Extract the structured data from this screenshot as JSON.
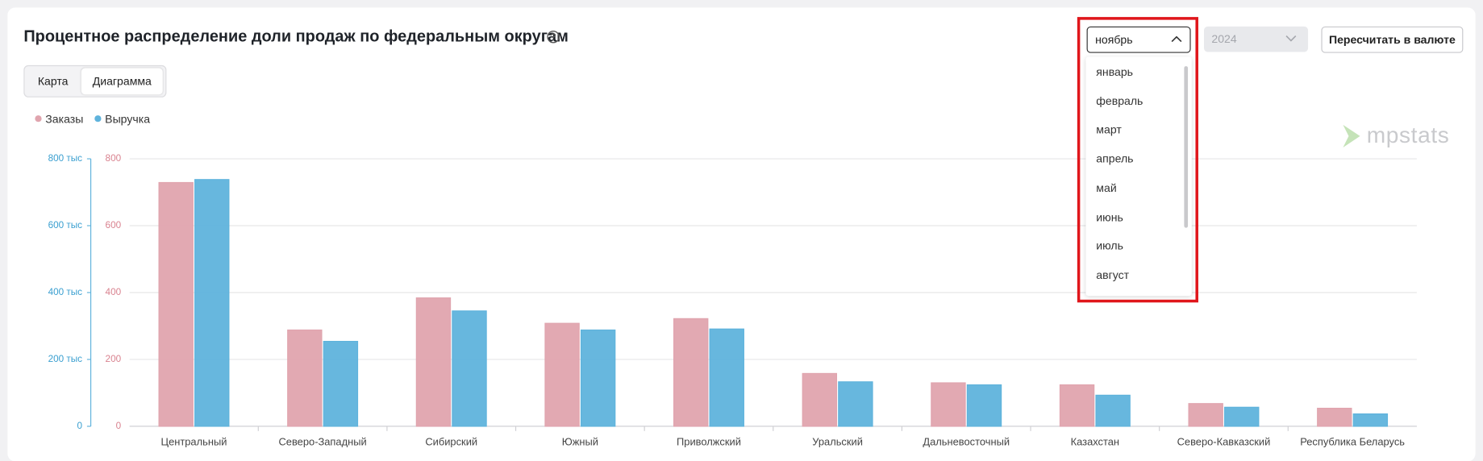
{
  "header": {
    "title": "Процентное распределение доли продаж по федеральным округам"
  },
  "tabs": [
    "Карта",
    "Диаграмма"
  ],
  "controls": {
    "month_selected": "ноябрь",
    "months": [
      "январь",
      "февраль",
      "март",
      "апрель",
      "май",
      "июнь",
      "июль",
      "август"
    ],
    "year": "2024",
    "recalc_button": "Пересчитать в валюте"
  },
  "logo": "mpstats",
  "chart_data": {
    "type": "bar",
    "categories": [
      "Центральный",
      "Северо-Западный",
      "Сибирский",
      "Южный",
      "Приволжский",
      "Уральский",
      "Дальневосточный",
      "Казахстан",
      "Северо-Кавказский",
      "Республика Беларусь"
    ],
    "series": [
      {
        "name": "Заказы",
        "color": "#e0a4ae",
        "axis": "y",
        "values": [
          729,
          288,
          384,
          308,
          322,
          158,
          130,
          124,
          68,
          54
        ]
      },
      {
        "name": "Выручка",
        "color": "#5fb3dc",
        "axis": "y2",
        "values": [
          738000,
          254000,
          345000,
          288000,
          291000,
          133000,
          124000,
          93000,
          57000,
          37000
        ]
      }
    ],
    "ylim": [
      0,
      800
    ],
    "yticks": [
      0,
      200,
      400,
      600,
      800
    ],
    "y2lim": [
      0,
      800000
    ],
    "y2ticks": [
      0,
      {
        "value": 200000,
        "label": "200 тыс"
      },
      {
        "value": 400000,
        "label": "400 тыс"
      },
      {
        "value": 600000,
        "label": "600 тыс"
      },
      {
        "value": 800000,
        "label": "800 тыс"
      }
    ],
    "grid": true
  }
}
